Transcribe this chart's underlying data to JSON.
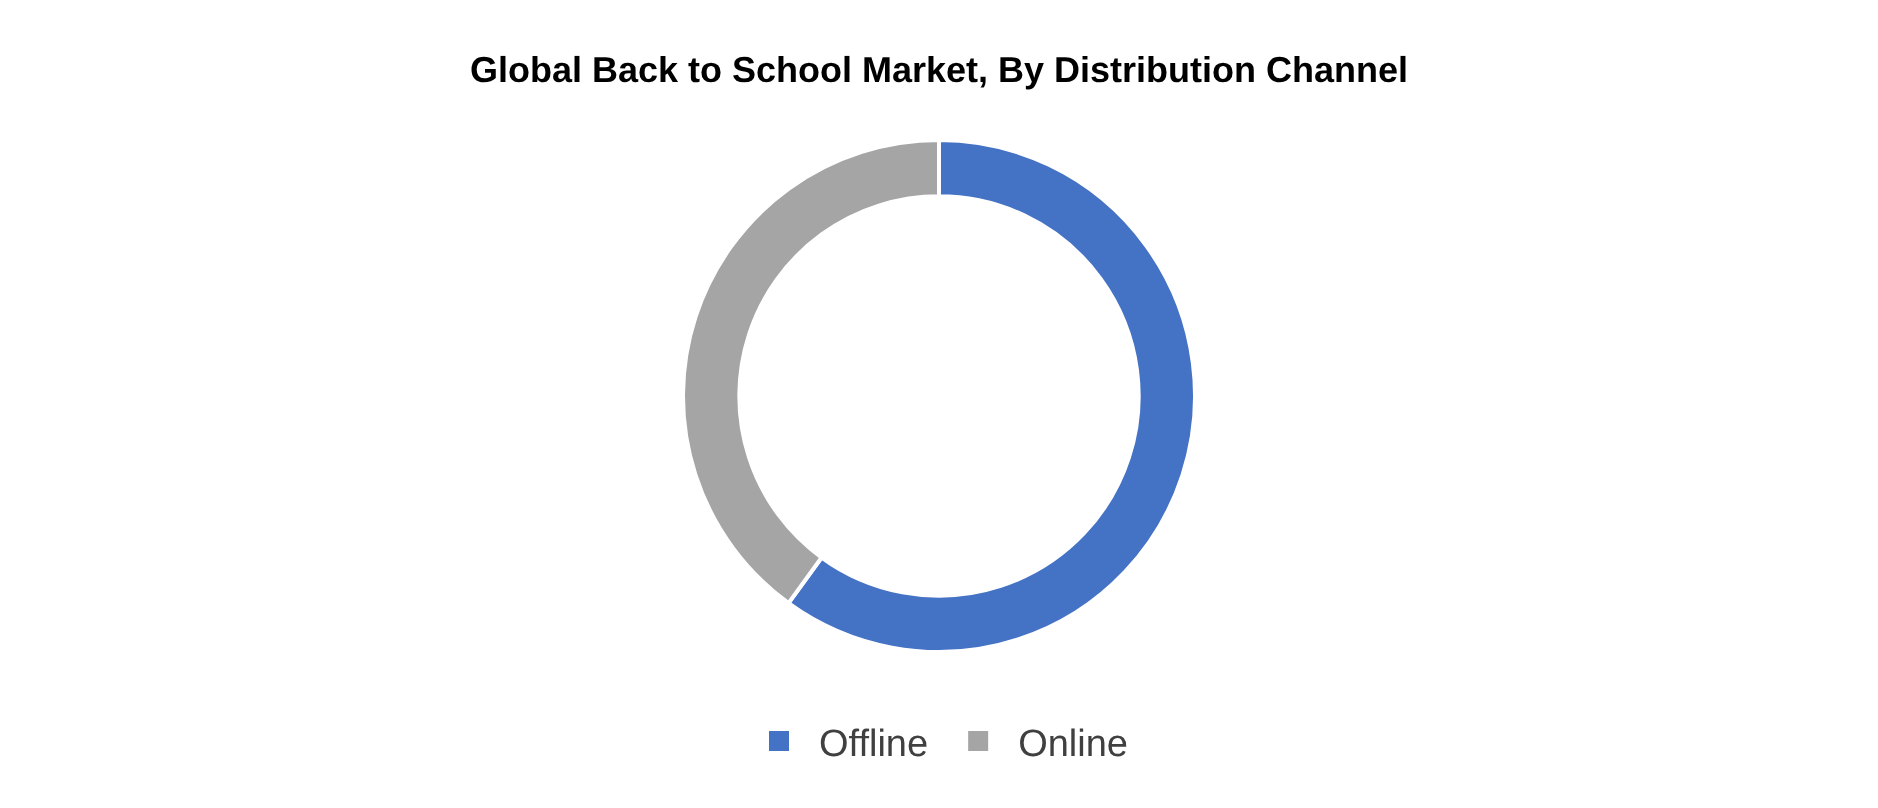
{
  "chart_data": {
    "type": "donut",
    "title": "Global Back to School Market, By Distribution Channel",
    "categories": [
      "Offline",
      "Online"
    ],
    "values": [
      60,
      40
    ],
    "colors": [
      "#4472c4",
      "#a5a5a5"
    ],
    "legend": "bottom"
  }
}
